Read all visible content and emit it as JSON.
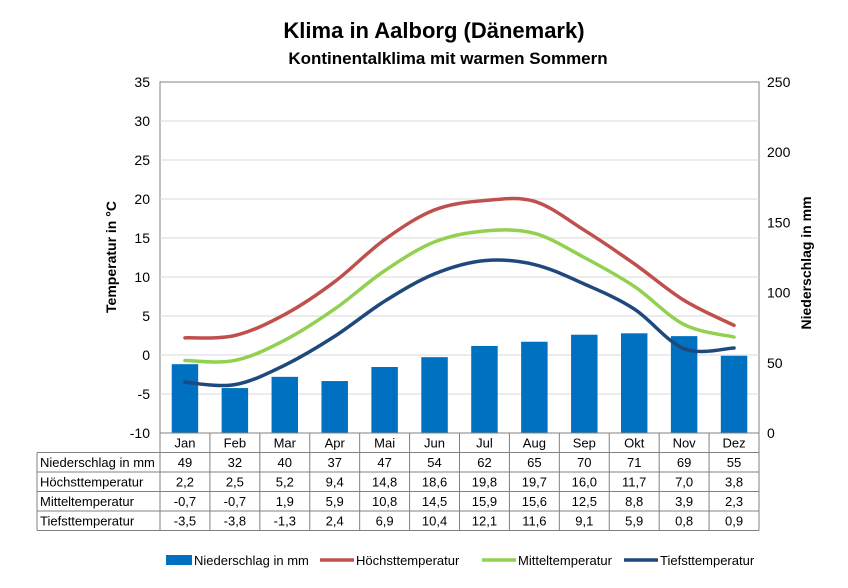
{
  "chart_data": {
    "type": "bar-line",
    "title": "Klima in Aalborg (Dänemark)",
    "subtitle": "Kontinentalklima mit warmen Sommern",
    "ylabel_left": "Temperatur in °C",
    "ylabel_right": "Niederschlag in mm",
    "ylim_left": [
      -10,
      35
    ],
    "yticks_left": [
      "35",
      "30",
      "25",
      "20",
      "15",
      "10",
      "5",
      "0",
      "-5",
      "-10"
    ],
    "ylim_right": [
      0,
      250
    ],
    "yticks_right": [
      "250",
      "200",
      "150",
      "100",
      "50",
      "0"
    ],
    "grid": true,
    "legend_position": "bottom",
    "categories": [
      "Jan",
      "Feb",
      "Mar",
      "Apr",
      "Mai",
      "Jun",
      "Jul",
      "Aug",
      "Sep",
      "Okt",
      "Nov",
      "Dez"
    ],
    "series": [
      {
        "name": "Niederschlag in mm",
        "kind": "bar",
        "axis": "right",
        "color": "#0070C0",
        "values": [
          49,
          32,
          40,
          37,
          47,
          54,
          62,
          65,
          70,
          71,
          69,
          55
        ],
        "labels": [
          "49",
          "32",
          "40",
          "37",
          "47",
          "54",
          "62",
          "65",
          "70",
          "71",
          "69",
          "55"
        ]
      },
      {
        "name": "Höchsttemperatur",
        "kind": "line",
        "axis": "left",
        "color": "#C0504D",
        "values": [
          2.2,
          2.5,
          5.2,
          9.4,
          14.8,
          18.6,
          19.8,
          19.7,
          16.0,
          11.7,
          7.0,
          3.8
        ],
        "labels": [
          "2,2",
          "2,5",
          "5,2",
          "9,4",
          "14,8",
          "18,6",
          "19,8",
          "19,7",
          "16,0",
          "11,7",
          "7,0",
          "3,8"
        ]
      },
      {
        "name": "Mitteltemperatur",
        "kind": "line",
        "axis": "left",
        "color": "#92D050",
        "values": [
          -0.7,
          -0.7,
          1.9,
          5.9,
          10.8,
          14.5,
          15.9,
          15.6,
          12.5,
          8.8,
          3.9,
          2.3
        ],
        "labels": [
          "-0,7",
          "-0,7",
          "1,9",
          "5,9",
          "10,8",
          "14,5",
          "15,9",
          "15,6",
          "12,5",
          "8,8",
          "3,9",
          "2,3"
        ]
      },
      {
        "name": "Tiefsttemperatur",
        "kind": "line",
        "axis": "left",
        "color": "#1F497D",
        "values": [
          -3.5,
          -3.8,
          -1.3,
          2.4,
          6.9,
          10.4,
          12.1,
          11.6,
          9.1,
          5.9,
          0.8,
          0.9
        ],
        "labels": [
          "-3,5",
          "-3,8",
          "-1,3",
          "2,4",
          "6,9",
          "10,4",
          "12,1",
          "11,6",
          "9,1",
          "5,9",
          "0,8",
          "0,9"
        ]
      }
    ]
  }
}
